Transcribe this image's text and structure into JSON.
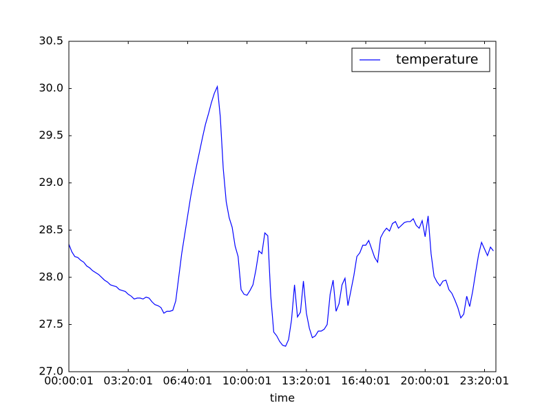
{
  "chart_data": {
    "type": "line",
    "xlabel": "time",
    "x": [
      1,
      601,
      1201,
      1801,
      2401,
      3001,
      3601,
      4201,
      4801,
      5401,
      6001,
      6601,
      7201,
      7801,
      8401,
      9001,
      9601,
      10201,
      10801,
      11401,
      12001,
      12601,
      13201,
      13801,
      14401,
      15001,
      15601,
      16201,
      16801,
      17401,
      18001,
      18601,
      19201,
      19801,
      20401,
      21001,
      21601,
      22201,
      22801,
      23401,
      24001,
      24601,
      25201,
      25801,
      26401,
      27001,
      27601,
      28201,
      28801,
      29401,
      30001,
      30601,
      31201,
      31801,
      32401,
      33001,
      33601,
      34201,
      34801,
      35401,
      36001,
      36601,
      37201,
      37801,
      38401,
      39001,
      39601,
      40201,
      40801,
      41401,
      42001,
      42601,
      43201,
      43801,
      44401,
      45001,
      45601,
      46201,
      46801,
      47401,
      48001,
      48601,
      49201,
      49801,
      50401,
      51001,
      51601,
      52201,
      52801,
      53401,
      54001,
      54601,
      55201,
      55801,
      56401,
      57001,
      57601,
      58201,
      58801,
      59401,
      60001,
      60601,
      61201,
      61801,
      62401,
      63001,
      63601,
      64201,
      64801,
      65401,
      66001,
      66601,
      67201,
      67801,
      68401,
      69001,
      69601,
      70201,
      70801,
      71401,
      72001,
      72601,
      73201,
      73801,
      74401,
      75001,
      75601,
      76201,
      76801,
      77401,
      78001,
      78601,
      79201,
      79801,
      80401,
      81001,
      81601,
      82201,
      82801,
      83401,
      84001,
      84601,
      85201,
      85801
    ],
    "series": [
      {
        "name": "temperature",
        "color": "#0000ff",
        "values": [
          28.35,
          28.27,
          28.22,
          28.21,
          28.18,
          28.16,
          28.12,
          28.1,
          28.07,
          28.05,
          28.03,
          28.0,
          27.97,
          27.95,
          27.92,
          27.91,
          27.9,
          27.87,
          27.86,
          27.85,
          27.82,
          27.8,
          27.77,
          27.78,
          27.78,
          27.77,
          27.79,
          27.78,
          27.74,
          27.71,
          27.7,
          27.68,
          27.62,
          27.64,
          27.64,
          27.65,
          27.75,
          28.0,
          28.25,
          28.45,
          28.65,
          28.85,
          29.02,
          29.18,
          29.33,
          29.48,
          29.62,
          29.73,
          29.85,
          29.95,
          30.02,
          29.7,
          29.15,
          28.8,
          28.63,
          28.53,
          28.33,
          28.22,
          27.87,
          27.82,
          27.81,
          27.86,
          27.92,
          28.08,
          28.28,
          28.25,
          28.47,
          28.44,
          27.8,
          27.42,
          27.38,
          27.32,
          27.28,
          27.27,
          27.34,
          27.55,
          27.92,
          27.58,
          27.63,
          27.96,
          27.62,
          27.46,
          27.36,
          27.38,
          27.43,
          27.43,
          27.45,
          27.5,
          27.82,
          27.97,
          27.64,
          27.72,
          27.92,
          27.99,
          27.7,
          27.86,
          28.02,
          28.22,
          28.26,
          28.34,
          28.34,
          28.39,
          28.3,
          28.21,
          28.16,
          28.42,
          28.48,
          28.52,
          28.49,
          28.57,
          28.59,
          28.52,
          28.55,
          28.58,
          28.59,
          28.59,
          28.62,
          28.55,
          28.52,
          28.6,
          28.43,
          28.65,
          28.25,
          28.01,
          27.95,
          27.91,
          27.96,
          27.97,
          27.87,
          27.83,
          27.76,
          27.68,
          27.57,
          27.61,
          27.8,
          27.69,
          27.85,
          28.05,
          28.24,
          28.37,
          28.3,
          28.23,
          28.32,
          28.28
        ]
      }
    ],
    "xlim": [
      1,
      86300
    ],
    "xticks": [
      {
        "value": 1,
        "label": "00:00:01"
      },
      {
        "value": 12001,
        "label": "03:20:01"
      },
      {
        "value": 24001,
        "label": "06:40:01"
      },
      {
        "value": 36001,
        "label": "10:00:01"
      },
      {
        "value": 48001,
        "label": "13:20:01"
      },
      {
        "value": 60001,
        "label": "16:40:01"
      },
      {
        "value": 72001,
        "label": "20:00:01"
      },
      {
        "value": 84001,
        "label": "23:20:01"
      }
    ],
    "ylim": [
      27.0,
      30.5
    ],
    "yticks": [
      {
        "value": 27.0,
        "label": "27.0"
      },
      27.5,
      {
        "value": 28.0,
        "label": "28.0"
      },
      28.5,
      {
        "value": 29.0,
        "label": "29.0"
      },
      29.5,
      {
        "value": 30.0,
        "label": "30.0"
      },
      30.5
    ],
    "legend": "upper right"
  }
}
